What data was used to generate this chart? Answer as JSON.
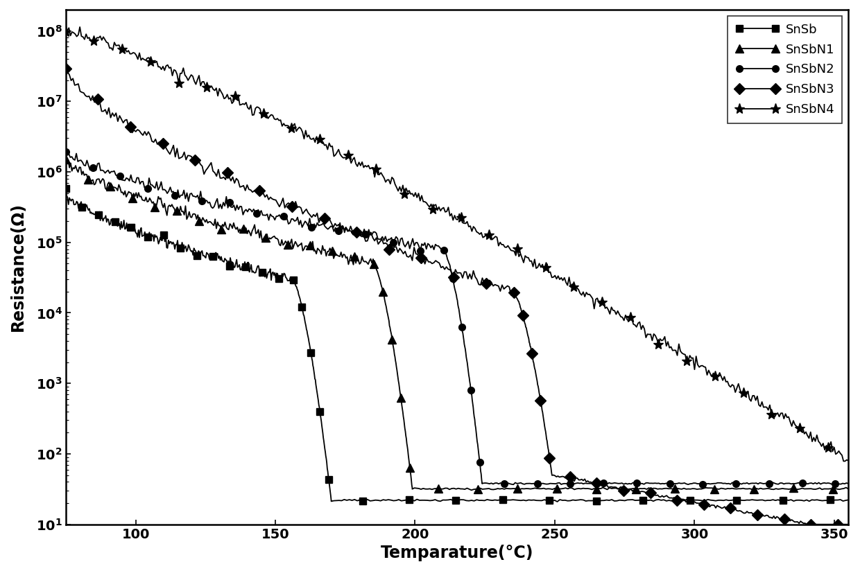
{
  "title": "",
  "xlabel": "Temparature(°C)",
  "ylabel": "Resistance(Ω)",
  "xlim": [
    75,
    355
  ],
  "ylim": [
    10,
    200000000.0
  ],
  "xticks": [
    100,
    150,
    200,
    250,
    300,
    350
  ],
  "series": [
    {
      "label": "SnSb",
      "marker": "s",
      "color": "#000000",
      "t_trans": 158,
      "r_flat": 22,
      "r_init": 500000.0,
      "r_pretrans": 30000.0,
      "noise": 0.04,
      "seed": 11
    },
    {
      "label": "SnSbN1",
      "marker": "^",
      "color": "#000000",
      "t_trans": 187,
      "r_flat": 32,
      "r_init": 1500000.0,
      "r_pretrans": 50000.0,
      "noise": 0.04,
      "seed": 21
    },
    {
      "label": "SnSbN2",
      "marker": "o",
      "color": "#000000",
      "t_trans": 212,
      "r_flat": 38,
      "r_init": 2000000.0,
      "r_pretrans": 80000.0,
      "noise": 0.04,
      "seed": 31
    },
    {
      "label": "SnSbN3",
      "marker": "D",
      "color": "#000000",
      "t_trans": 237,
      "r_flat": 50,
      "r_init": 30000000.0,
      "r_pretrans": 20000.0,
      "noise": 0.04,
      "seed": 41
    },
    {
      "label": "SnSbN4",
      "marker": "*",
      "color": "#000000",
      "t_trans": 999,
      "r_flat": 80,
      "r_init": 100000000.0,
      "r_pretrans": 80,
      "noise": 0.04,
      "seed": 51
    }
  ],
  "background_color": "#ffffff",
  "text_color": "#000000",
  "legend_fontsize": 13,
  "axis_label_fontsize": 17,
  "tick_fontsize": 14
}
